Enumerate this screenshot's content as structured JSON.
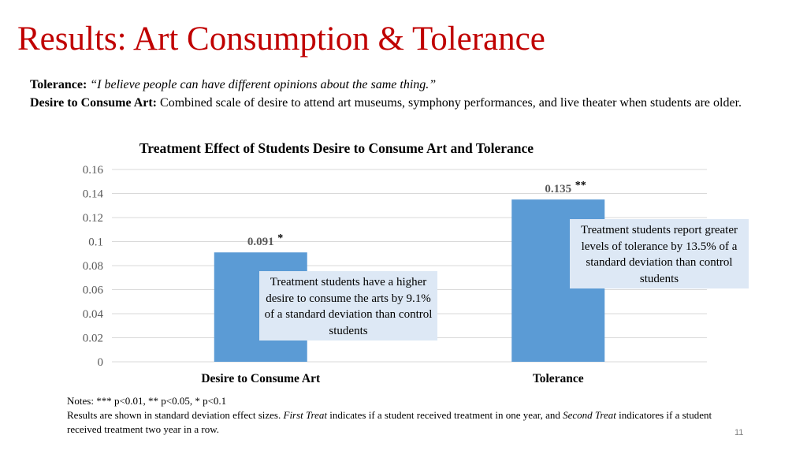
{
  "slide": {
    "title": "Results: Art Consumption & Tolerance",
    "page_number": "11"
  },
  "definitions": {
    "tolerance_label": "Tolerance:",
    "tolerance_text": "“I believe people can have different opinions about the same thing.”",
    "art_label": "Desire to Consume Art:",
    "art_text": "Combined scale of desire to attend art museums, symphony performances, and live theater when students are older."
  },
  "chart_data": {
    "type": "bar",
    "title": "Treatment Effect of Students Desire to Consume Art and Tolerance",
    "categories": [
      "Desire to Consume Art",
      "Tolerance"
    ],
    "values": [
      0.091,
      0.135
    ],
    "data_labels": [
      "0.091",
      "0.135"
    ],
    "significance": [
      "*",
      "**"
    ],
    "ylim": [
      0,
      0.16
    ],
    "yticks": [
      "0",
      "0.02",
      "0.04",
      "0.06",
      "0.08",
      "0.1",
      "0.12",
      "0.14",
      "0.16"
    ],
    "ytick_values": [
      0,
      0.02,
      0.04,
      0.06,
      0.08,
      0.1,
      0.12,
      0.14,
      0.16
    ],
    "grid": true,
    "bar_color": "#5b9bd5",
    "grid_color": "#d9d9d9",
    "xlabel": "",
    "ylabel": ""
  },
  "callouts": {
    "art": "Treatment students have a higher desire to consume the arts by 9.1% of a standard deviation than control students",
    "tolerance": "Treatment students report greater levels of tolerance by 13.5% of a standard deviation than control students"
  },
  "notes": {
    "line1": "Notes: *** p<0.01, ** p<0.05, * p<0.1",
    "line2_a": "Results are shown in standard deviation effect sizes.",
    "first_treat": "First Treat",
    "line2_b": "indicates if a student received treatment in one year, and",
    "second_treat": "Second Treat",
    "line2_c": "indicatores if a student received treatment two year in a row."
  }
}
